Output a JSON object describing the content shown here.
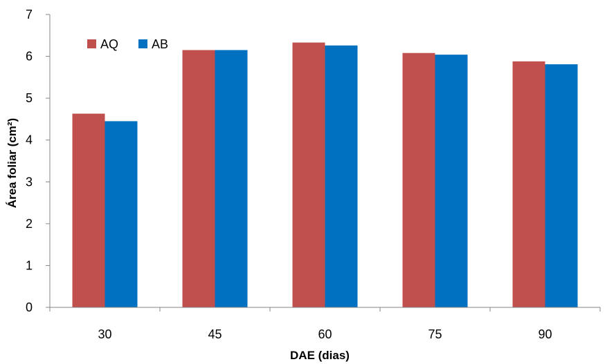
{
  "chart_data": {
    "type": "bar",
    "categories": [
      "30",
      "45",
      "60",
      "75",
      "90"
    ],
    "series": [
      {
        "name": "AQ",
        "color": "#c0504d",
        "values": [
          4.63,
          6.15,
          6.33,
          6.08,
          5.88
        ]
      },
      {
        "name": "AB",
        "color": "#0070c0",
        "values": [
          4.45,
          6.15,
          6.26,
          6.04,
          5.81
        ]
      }
    ],
    "xlabel": "DAE (dias)",
    "ylabel": "Área foliar (cm²)",
    "ylim": [
      0,
      7
    ],
    "yticks": [
      "0",
      "1",
      "2",
      "3",
      "4",
      "5",
      "6",
      "7"
    ],
    "grid": false,
    "legend_position": "top-left"
  }
}
